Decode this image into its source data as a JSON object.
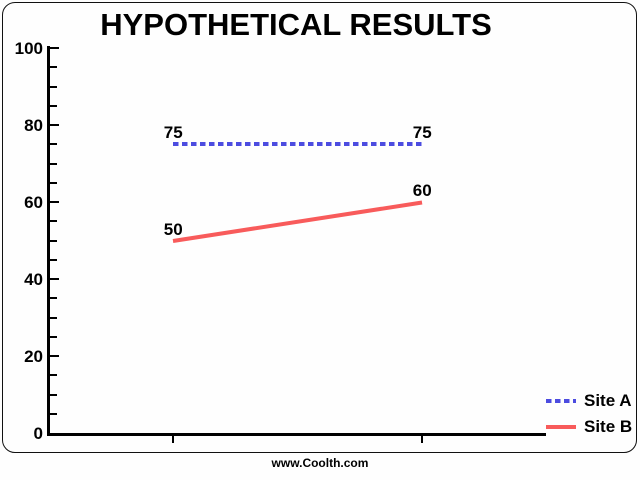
{
  "page": {
    "footer": "www.Coolth.com"
  },
  "chart_data": {
    "type": "line",
    "title": "HYPOTHETICAL RESULTS",
    "x_tick_labels": [
      "",
      ""
    ],
    "series": [
      {
        "name": "Site A",
        "values": [
          75,
          75
        ],
        "point_labels": [
          "75",
          "75"
        ],
        "color": "#4c4ce0",
        "line_style": "dashed"
      },
      {
        "name": "Site B",
        "values": [
          50,
          60
        ],
        "point_labels": [
          "50",
          "60"
        ],
        "color": "#f85b5b",
        "line_style": "solid"
      }
    ],
    "ylim": [
      0,
      100
    ],
    "y_major_tick_step": 20,
    "y_minor_tick_step": 5,
    "y_tick_labels": [
      "0",
      "20",
      "40",
      "60",
      "80",
      "100"
    ],
    "grid": false,
    "legend_position": "bottom-right",
    "axis_color": "#000000",
    "background_color": "#fefefe"
  }
}
